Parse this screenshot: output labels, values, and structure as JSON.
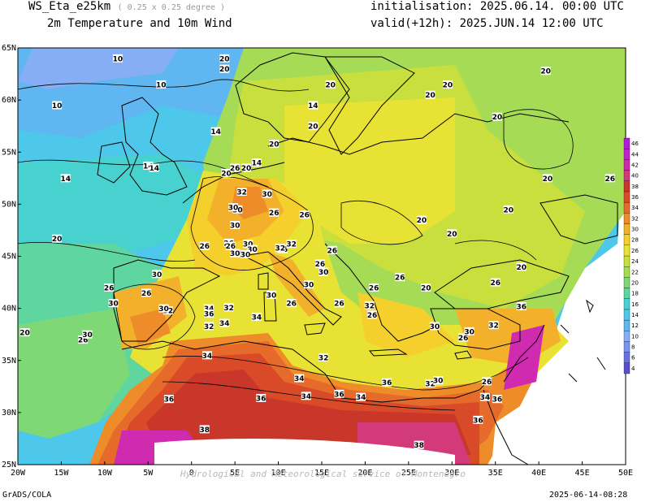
{
  "header": {
    "model": "WS_Eta_e25km",
    "resolution": "( 0.25 x 0.25 degree )",
    "field": "2m Temperature and 10m Wind",
    "init_label": "initialisation: 2025.06.14. 00:00 UTC",
    "valid_label": "valid(+12h): 2025.JUN.14 12:00 UTC"
  },
  "axes": {
    "lon_labels": [
      "20W",
      "15W",
      "10W",
      "5W",
      "0",
      "5E",
      "10E",
      "15E",
      "20E",
      "25E",
      "30E",
      "35E",
      "40E",
      "45E",
      "50E"
    ],
    "lat_labels": [
      "65N",
      "60N",
      "55N",
      "50N",
      "45N",
      "40N",
      "35N",
      "30N",
      "25N"
    ]
  },
  "watermark": "Hydrological and Meteorological service of Montenegro",
  "colorbar": {
    "levels": [
      "4",
      "6",
      "8",
      "10",
      "12",
      "14",
      "16",
      "18",
      "20",
      "22",
      "24",
      "26",
      "28",
      "30",
      "32",
      "34",
      "36",
      "38",
      "40",
      "42",
      "44",
      "46"
    ],
    "colors": [
      "#5a4fc9",
      "#6a70e0",
      "#7b95ef",
      "#86aef5",
      "#5fb6f0",
      "#4ec8ea",
      "#48d2cf",
      "#5fd6a0",
      "#7ed875",
      "#a6dc55",
      "#c8df3e",
      "#e8e234",
      "#f5cf2c",
      "#f3b02b",
      "#ee8c2a",
      "#e66a2a",
      "#d94b28",
      "#c8372a",
      "#d23a7a",
      "#cf2ab0",
      "#c41fcf",
      "#b01ad8"
    ]
  },
  "contour_labels": [
    {
      "text": "20",
      "lon": 3.8,
      "lat": 64
    },
    {
      "text": "20",
      "lon": 3.8,
      "lat": 63
    },
    {
      "text": "10",
      "lon": -3.5,
      "lat": 61.5
    },
    {
      "text": "10",
      "lon": -8.5,
      "lat": 64
    },
    {
      "text": "10",
      "lon": -15.5,
      "lat": 59.5
    },
    {
      "text": "14",
      "lon": 2.8,
      "lat": 57
    },
    {
      "text": "14",
      "lon": -5,
      "lat": 53.7
    },
    {
      "text": "14",
      "lon": -4.3,
      "lat": 53.5
    },
    {
      "text": "14",
      "lon": -14.5,
      "lat": 52.5
    },
    {
      "text": "20",
      "lon": -15.5,
      "lat": 46.7
    },
    {
      "text": "20",
      "lon": -19.2,
      "lat": 37.7
    },
    {
      "text": "20",
      "lon": 4,
      "lat": 53
    },
    {
      "text": "26",
      "lon": 5,
      "lat": 53.5
    },
    {
      "text": "20",
      "lon": 6.3,
      "lat": 53.5
    },
    {
      "text": "14",
      "lon": 7.5,
      "lat": 54
    },
    {
      "text": "20",
      "lon": 9.5,
      "lat": 55.8
    },
    {
      "text": "14",
      "lon": 14,
      "lat": 59.5
    },
    {
      "text": "20",
      "lon": 14,
      "lat": 57.5
    },
    {
      "text": "20",
      "lon": 16,
      "lat": 61.5
    },
    {
      "text": "20",
      "lon": 27.5,
      "lat": 60.5
    },
    {
      "text": "20",
      "lon": 40.8,
      "lat": 62.8
    },
    {
      "text": "20",
      "lon": 35.2,
      "lat": 58.4
    },
    {
      "text": "20",
      "lon": 29.5,
      "lat": 61.5
    },
    {
      "text": "20",
      "lon": 41,
      "lat": 52.5
    },
    {
      "text": "26",
      "lon": 48.2,
      "lat": 52.5
    },
    {
      "text": "20",
      "lon": 36.5,
      "lat": 49.5
    },
    {
      "text": "20",
      "lon": 30,
      "lat": 47.2
    },
    {
      "text": "20",
      "lon": 26.5,
      "lat": 48.5
    },
    {
      "text": "20",
      "lon": 38,
      "lat": 44
    },
    {
      "text": "20",
      "lon": 27,
      "lat": 42
    },
    {
      "text": "26",
      "lon": 35,
      "lat": 42.5
    },
    {
      "text": "26",
      "lon": 24,
      "lat": 43
    },
    {
      "text": "32",
      "lon": 5.8,
      "lat": 51.2
    },
    {
      "text": "30",
      "lon": 8.7,
      "lat": 51
    },
    {
      "text": "30",
      "lon": 5.3,
      "lat": 49.5
    },
    {
      "text": "26",
      "lon": 10.5,
      "lat": 45.7
    },
    {
      "text": "30",
      "lon": 4.8,
      "lat": 49.7
    },
    {
      "text": "26",
      "lon": 13,
      "lat": 49
    },
    {
      "text": "26",
      "lon": 9.5,
      "lat": 49.2
    },
    {
      "text": "30",
      "lon": 5,
      "lat": 48
    },
    {
      "text": "30",
      "lon": 6.5,
      "lat": 46.2
    },
    {
      "text": "32",
      "lon": 10.2,
      "lat": 45.8
    },
    {
      "text": "30",
      "lon": 7,
      "lat": 45.7
    },
    {
      "text": "26",
      "lon": 4.3,
      "lat": 46.3
    },
    {
      "text": "30",
      "lon": 5,
      "lat": 45.3
    },
    {
      "text": "26",
      "lon": 1.5,
      "lat": 46
    },
    {
      "text": "26",
      "lon": 4.5,
      "lat": 46
    },
    {
      "text": "30",
      "lon": 6.2,
      "lat": 45.2
    },
    {
      "text": "32",
      "lon": 11.5,
      "lat": 46.2
    },
    {
      "text": "26",
      "lon": 16.2,
      "lat": 45.6
    },
    {
      "text": "26",
      "lon": 14.8,
      "lat": 44.3
    },
    {
      "text": "30",
      "lon": 15.2,
      "lat": 43.5
    },
    {
      "text": "30",
      "lon": 13.5,
      "lat": 42.3
    },
    {
      "text": "26",
      "lon": 21,
      "lat": 42
    },
    {
      "text": "32",
      "lon": 20.5,
      "lat": 40.3
    },
    {
      "text": "26",
      "lon": 20.8,
      "lat": 39.4
    },
    {
      "text": "30",
      "lon": 28,
      "lat": 38.3
    },
    {
      "text": "26",
      "lon": 31.3,
      "lat": 37.2
    },
    {
      "text": "30",
      "lon": 32,
      "lat": 37.8
    },
    {
      "text": "32",
      "lon": 34.8,
      "lat": 38.4
    },
    {
      "text": "36",
      "lon": 38,
      "lat": 40.2
    },
    {
      "text": "26",
      "lon": 11.5,
      "lat": 40.5
    },
    {
      "text": "26",
      "lon": 17,
      "lat": 40.5
    },
    {
      "text": "30",
      "lon": 9.2,
      "lat": 41.3
    },
    {
      "text": "26",
      "lon": -9.5,
      "lat": 42
    },
    {
      "text": "30",
      "lon": -9,
      "lat": 40.5
    },
    {
      "text": "26",
      "lon": -5.2,
      "lat": 41.5
    },
    {
      "text": "30",
      "lon": -4,
      "lat": 43.3
    },
    {
      "text": "32",
      "lon": -2.7,
      "lat": 39.8
    },
    {
      "text": "30",
      "lon": -3.2,
      "lat": 40
    },
    {
      "text": "34",
      "lon": 2,
      "lat": 40
    },
    {
      "text": "36",
      "lon": 2,
      "lat": 39.5
    },
    {
      "text": "32",
      "lon": 4.3,
      "lat": 40.1
    },
    {
      "text": "34",
      "lon": 3.8,
      "lat": 38.6
    },
    {
      "text": "34",
      "lon": 7.5,
      "lat": 39.2
    },
    {
      "text": "26",
      "lon": -12.5,
      "lat": 37
    },
    {
      "text": "30",
      "lon": -12,
      "lat": 37.5
    },
    {
      "text": "32",
      "lon": 2,
      "lat": 38.3
    },
    {
      "text": "34",
      "lon": 1.8,
      "lat": 35.5
    },
    {
      "text": "34",
      "lon": 12.4,
      "lat": 33.3
    },
    {
      "text": "32",
      "lon": 15.2,
      "lat": 35.3
    },
    {
      "text": "36",
      "lon": -2.6,
      "lat": 31.3
    },
    {
      "text": "36",
      "lon": 8,
      "lat": 31.4
    },
    {
      "text": "34",
      "lon": 13.2,
      "lat": 31.6
    },
    {
      "text": "36",
      "lon": 17,
      "lat": 31.8
    },
    {
      "text": "34",
      "lon": 19.5,
      "lat": 31.5
    },
    {
      "text": "36",
      "lon": 22.5,
      "lat": 32.9
    },
    {
      "text": "32",
      "lon": 27.5,
      "lat": 32.8
    },
    {
      "text": "30",
      "lon": 28.4,
      "lat": 33.1
    },
    {
      "text": "26",
      "lon": 34,
      "lat": 33
    },
    {
      "text": "34",
      "lon": 33.8,
      "lat": 31.5
    },
    {
      "text": "36",
      "lon": 35.2,
      "lat": 31.3
    },
    {
      "text": "36",
      "lon": 33,
      "lat": 29.3
    },
    {
      "text": "38",
      "lon": 1.5,
      "lat": 28.4
    },
    {
      "text": "38",
      "lon": 26.2,
      "lat": 26.9
    }
  ]
}
